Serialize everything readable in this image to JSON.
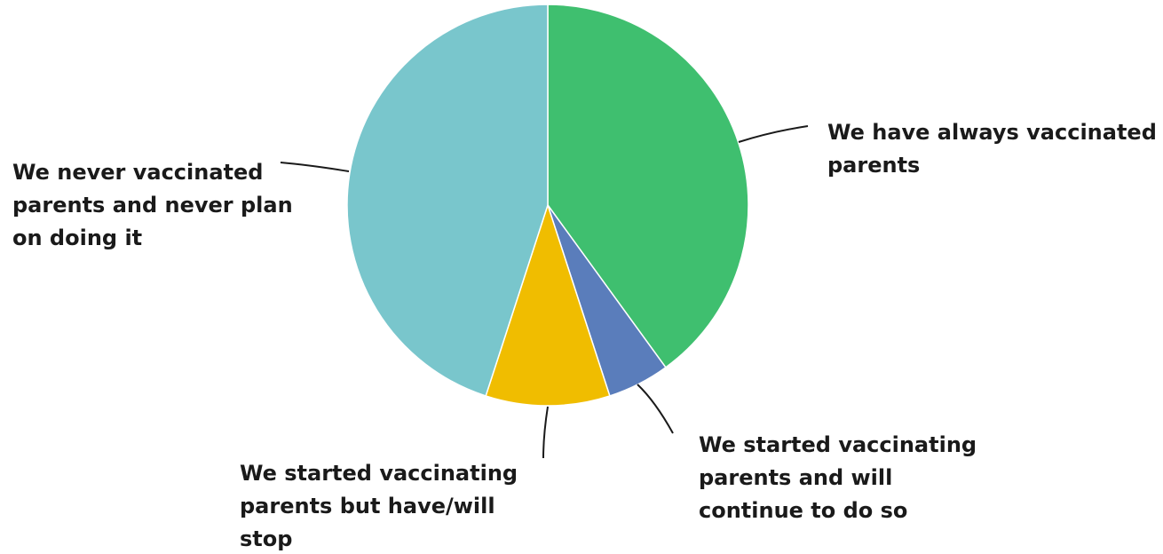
{
  "chart_data": {
    "type": "pie",
    "title": "",
    "start_angle_deg": 0,
    "direction": "clockwise",
    "slices": [
      {
        "label": "We have always vaccinated parents",
        "value": 40,
        "color": "#3fbf6f"
      },
      {
        "label": "We started vaccinating parents and will continue to do so",
        "value": 5,
        "color": "#5a7dbb"
      },
      {
        "label": "We started vaccinating parents but have/will stop",
        "value": 10,
        "color": "#f0bd00"
      },
      {
        "label": "We never vaccinated parents and never plan on doing it",
        "value": 45,
        "color": "#79c6cc"
      }
    ]
  }
}
